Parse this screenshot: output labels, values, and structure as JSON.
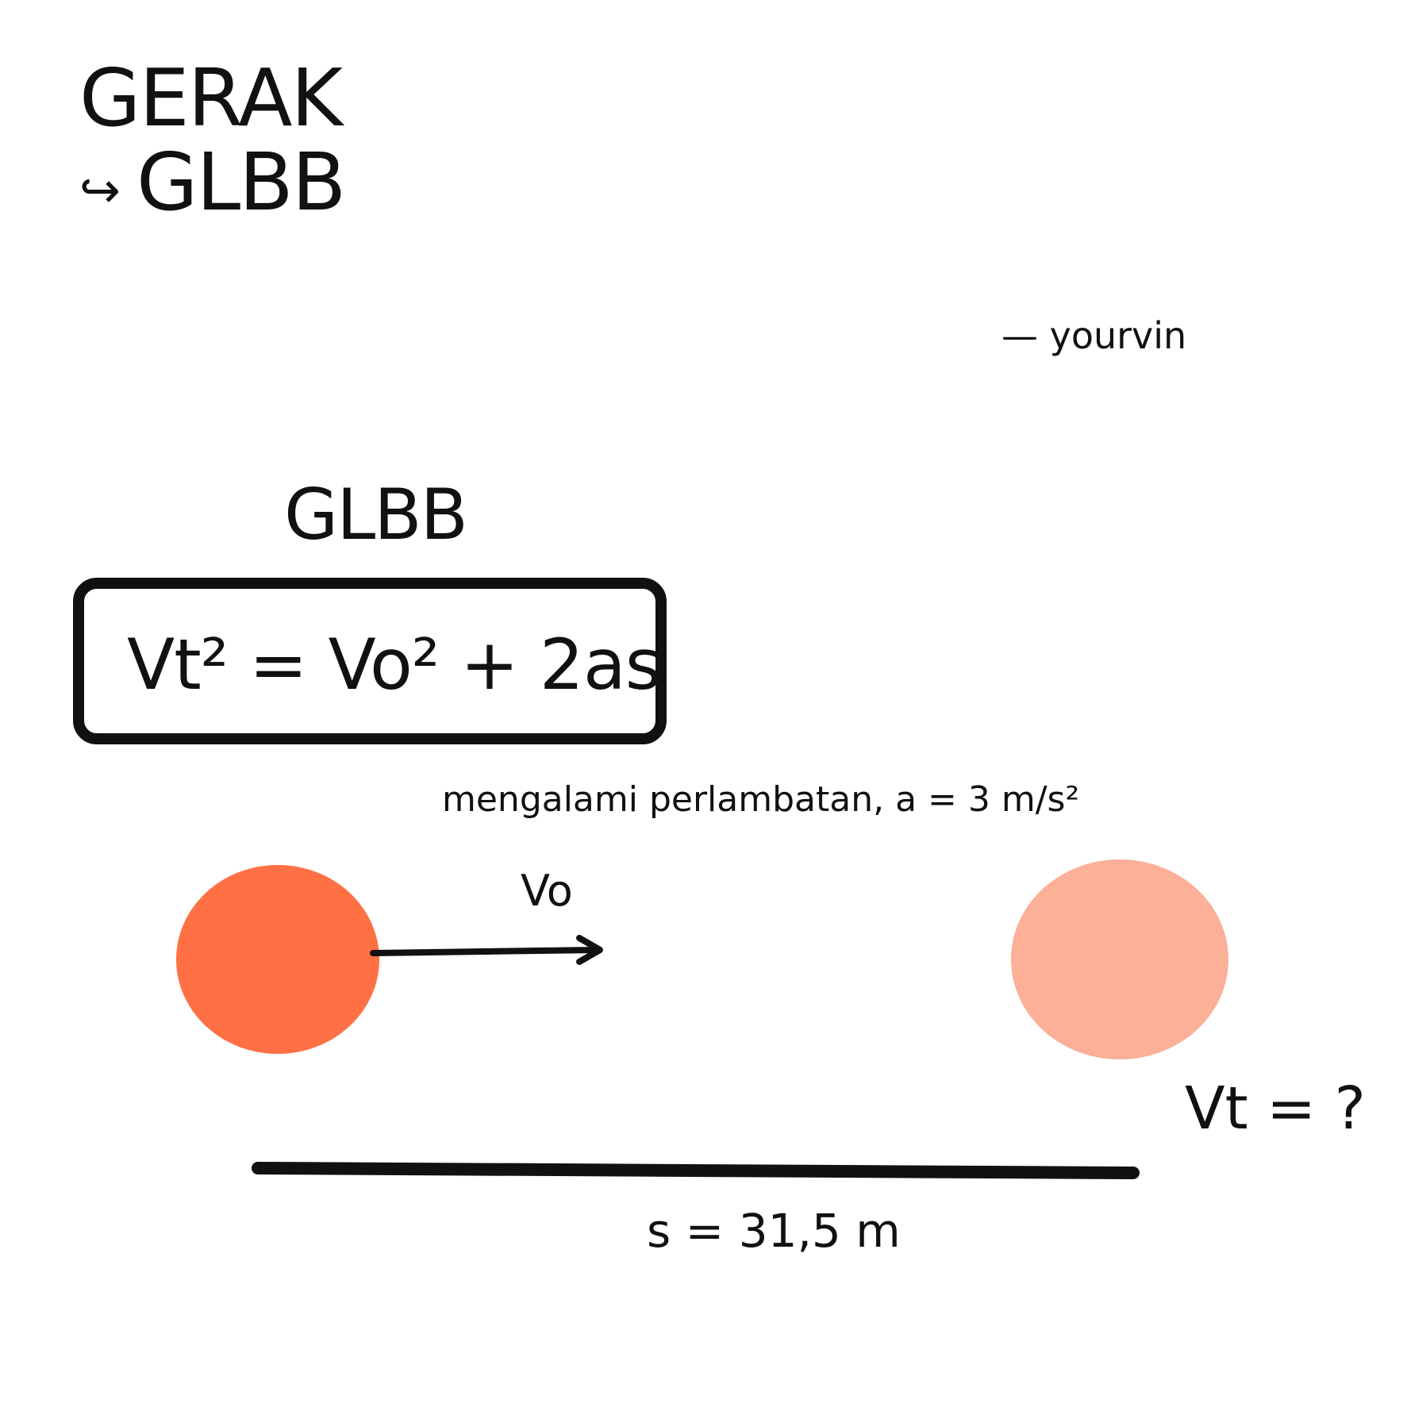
{
  "title": {
    "line1": "GERAK",
    "line2_arrow": "↪",
    "line2_text": "GLBB"
  },
  "author": "— yourvin",
  "section_title": "GLBB",
  "formula": "Vt² = Vo² + 2as",
  "condition": "mengalami perlambatan, a = 3 m/s²",
  "initial_velocity_label": "Vo",
  "final_velocity_label": "Vt = ?",
  "distance_label": "s = 31,5 m",
  "colors": {
    "ball_start": "#ff7144",
    "ball_end": "#fbb097",
    "ink": "#111111",
    "background": "#ffffff"
  },
  "icons": {
    "title_arrow": "hook-right-arrow-icon",
    "velocity_arrow": "right-arrow-icon"
  }
}
